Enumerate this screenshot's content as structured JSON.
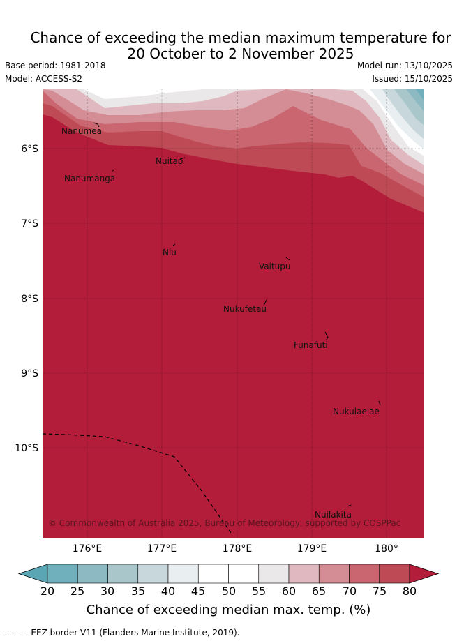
{
  "title": {
    "line1": "Chance of exceeding the median maximum temperature for",
    "line2": "20 October to 2 November 2025"
  },
  "meta": {
    "base_period": "Base period: 1981-2018",
    "model": "Model: ACCESS-S2",
    "model_run": "Model run: 13/10/2025",
    "issued": "Issued: 15/10/2025"
  },
  "map": {
    "copyright": "© Commonwealth of Australia 2025, Bureau of Meteorology, supported by COSPPac",
    "x_ticks": [
      "176°E",
      "177°E",
      "178°E",
      "179°E",
      "180°"
    ],
    "y_ticks": [
      "6°S",
      "7°S",
      "8°S",
      "9°S",
      "10°S"
    ],
    "places": [
      "Nanumea",
      "Nuitao",
      "Nanumanga",
      "Niu",
      "Vaitupu",
      "Nukufetau",
      "Funafuti",
      "Nukulaelae",
      "Nuilakita"
    ],
    "dominant_category": "80"
  },
  "colorbar": {
    "ticks": [
      "20",
      "25",
      "30",
      "35",
      "40",
      "45",
      "50",
      "55",
      "60",
      "65",
      "70",
      "75",
      "80"
    ],
    "colors": [
      "#5aa6b4",
      "#6fb0bc",
      "#8db9c3",
      "#a9c7cb",
      "#c8d7db",
      "#e9eff1",
      "#ffffff",
      "#ffffff",
      "#ebe8ea",
      "#dfb9bf",
      "#d48d95",
      "#c9666f",
      "#be4a55",
      "#b31d39"
    ],
    "label": "Chance of exceeding median max. temp. (%)"
  },
  "footer": "--  --  -- EEZ border V11 (Flanders Marine Institute, 2019)."
}
